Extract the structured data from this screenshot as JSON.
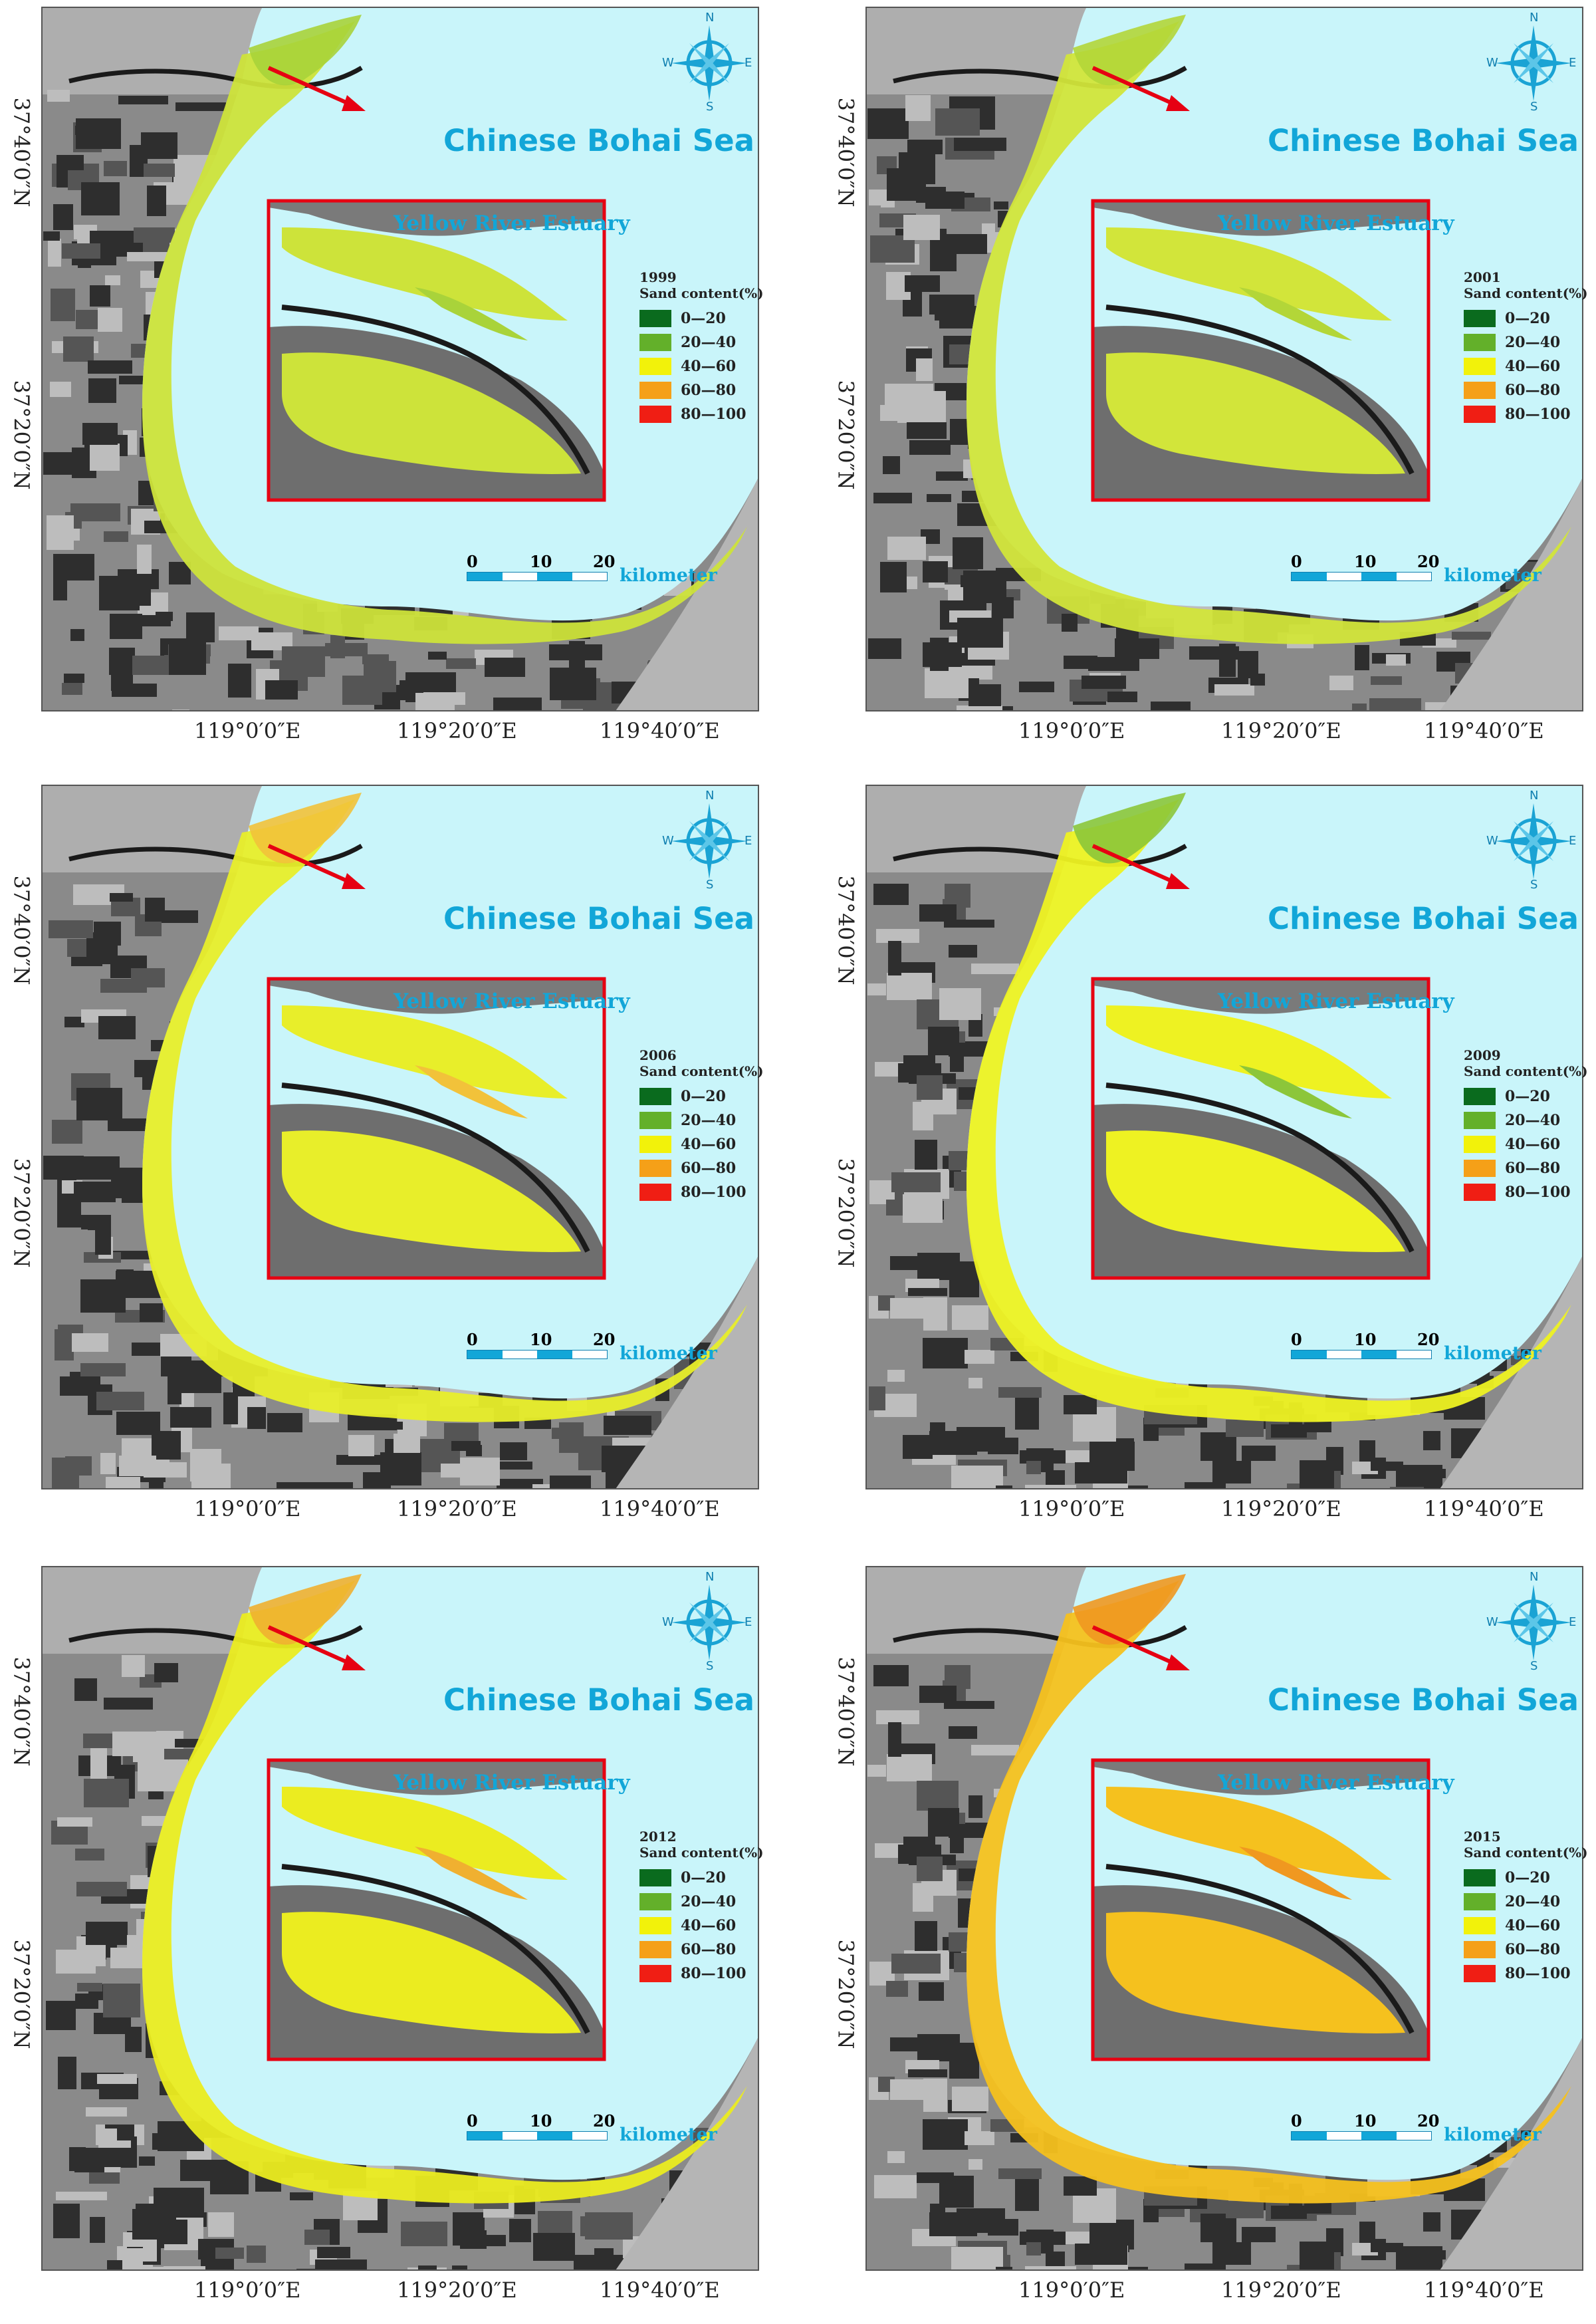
{
  "colors": {
    "sea": "#c9f5fa",
    "land_dark": "#2e2e2e",
    "land_mid": "#8a8a8a",
    "land_light": "#bdbdbd",
    "frame_red": "#e60012",
    "label_blue": "#12a6d8",
    "compass_blue": "#1aa3d4"
  },
  "common": {
    "sea_label": "Chinese Bohai Sea",
    "estuary_label": "Yellow River Estuary",
    "legend_title": "Sand content(%)",
    "lat_ticks": [
      "37°40′0″N",
      "37°20′0″N"
    ],
    "lon_ticks": [
      "119°0′0″E",
      "119°20′0″E",
      "119°40′0″E"
    ],
    "scale": {
      "ticks": [
        "0",
        "10",
        "20"
      ],
      "unit": "kilometer"
    },
    "compass": {
      "n": "N",
      "s": "S",
      "e": "E",
      "w": "W"
    },
    "legend_classes": [
      {
        "label": "0—20",
        "color": "#0a6b1e"
      },
      {
        "label": "20—40",
        "color": "#63b02a"
      },
      {
        "label": "40—60",
        "color": "#f2f20a"
      },
      {
        "label": "60—80",
        "color": "#f5a018"
      },
      {
        "label": "80—100",
        "color": "#f01e14"
      }
    ]
  },
  "panels": [
    {
      "year": "1999",
      "fill": "#cde33a",
      "fill2": "#a9d33a"
    },
    {
      "year": "2001",
      "fill": "#d2e53a",
      "fill2": "#b3d638"
    },
    {
      "year": "2006",
      "fill": "#e8ee2a",
      "fill2": "#f2c23a"
    },
    {
      "year": "2009",
      "fill": "#eef222",
      "fill2": "#8cc63a"
    },
    {
      "year": "2012",
      "fill": "#ebec20",
      "fill2": "#f0b030"
    },
    {
      "year": "2015",
      "fill": "#f5c11e",
      "fill2": "#f09820"
    }
  ]
}
